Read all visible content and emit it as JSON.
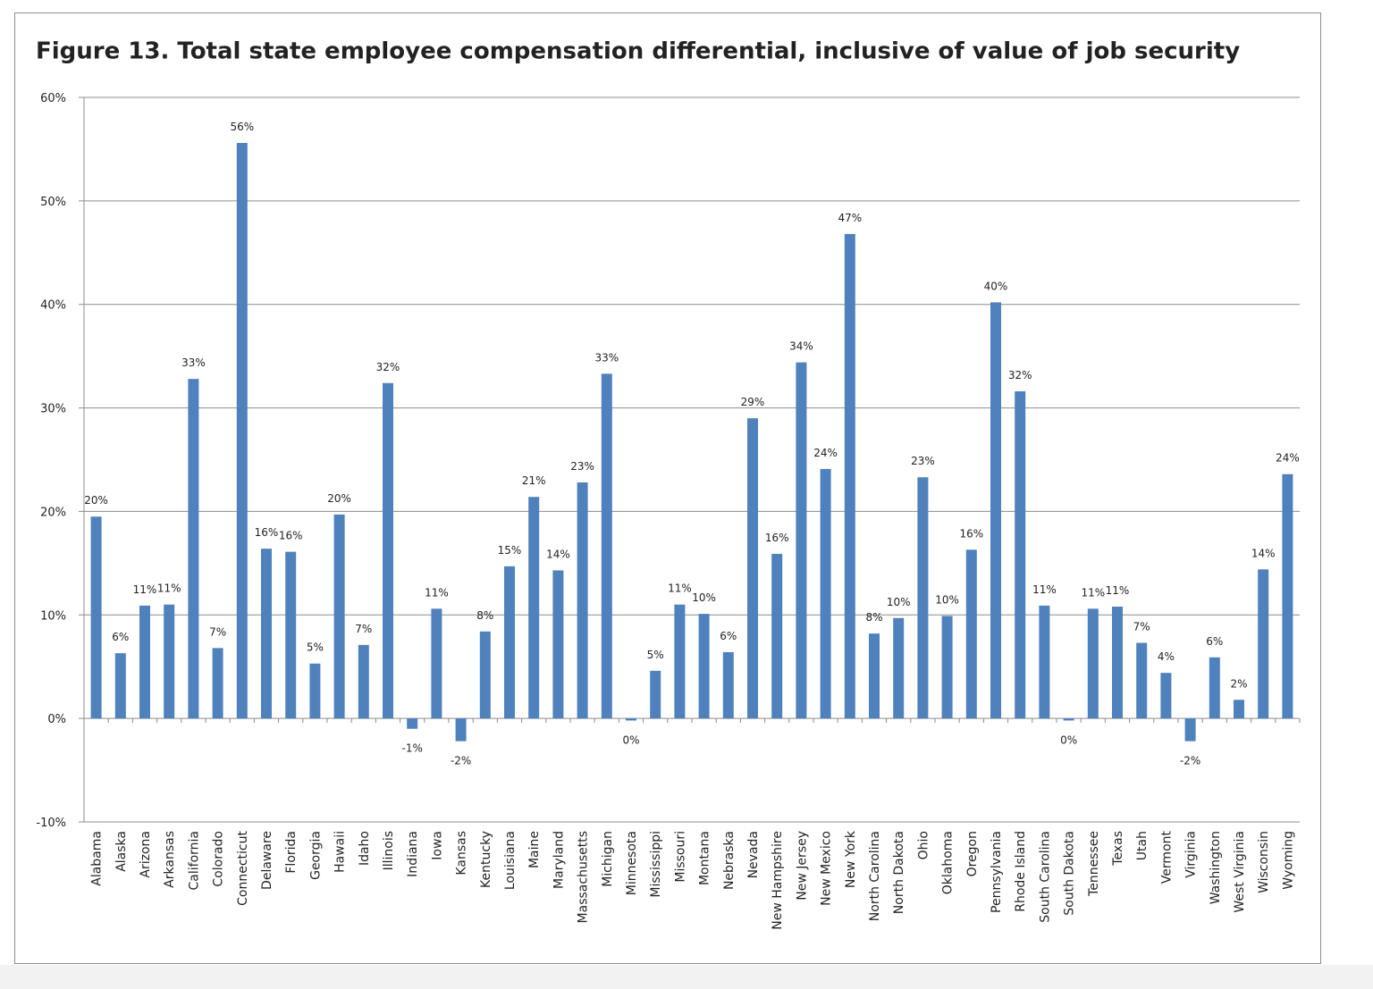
{
  "chart_data": {
    "type": "bar",
    "title": "Figure 13. Total state employee compensation  differential, inclusive of value of job security",
    "categories": [
      "Alabama",
      "Alaska",
      "Arizona",
      "Arkansas",
      "California",
      "Colorado",
      "Connecticut",
      "Delaware",
      "Florida",
      "Georgia",
      "Hawaii",
      "Idaho",
      "Illinois",
      "Indiana",
      "Iowa",
      "Kansas",
      "Kentucky",
      "Louisiana",
      "Maine",
      "Maryland",
      "Massachusetts",
      "Michigan",
      "Minnesota",
      "Mississippi",
      "Missouri",
      "Montana",
      "Nebraska",
      "Nevada",
      "New Hampshire",
      "New Jersey",
      "New Mexico",
      "New York",
      "North Carolina",
      "North Dakota",
      "Ohio",
      "Oklahoma",
      "Oregon",
      "Pennsylvania",
      "Rhode Island",
      "South Carolina",
      "South Dakota",
      "Tennessee",
      "Texas",
      "Utah",
      "Vermont",
      "Virginia",
      "Washington",
      "West Virginia",
      "Wisconsin",
      "Wyoming"
    ],
    "values": [
      19.5,
      6.3,
      10.9,
      11.0,
      32.8,
      6.8,
      55.6,
      16.4,
      16.1,
      5.3,
      19.7,
      7.1,
      32.4,
      -1.0,
      10.6,
      -2.2,
      8.4,
      14.7,
      21.4,
      14.3,
      22.8,
      33.3,
      -0.2,
      4.6,
      11.0,
      10.1,
      6.4,
      29.0,
      15.9,
      34.4,
      24.1,
      46.8,
      8.2,
      9.7,
      23.3,
      9.9,
      16.3,
      40.2,
      31.6,
      10.9,
      -0.2,
      10.6,
      10.8,
      7.3,
      4.4,
      -2.2,
      5.9,
      1.8,
      14.4,
      23.6
    ],
    "value_labels": [
      "20%",
      "6%",
      "11%",
      "11%",
      "33%",
      "7%",
      "56%",
      "16%",
      "16%",
      "5%",
      "20%",
      "7%",
      "32%",
      "-1%",
      "11%",
      "-2%",
      "8%",
      "15%",
      "21%",
      "14%",
      "23%",
      "33%",
      "0%",
      "5%",
      "11%",
      "10%",
      "6%",
      "29%",
      "16%",
      "34%",
      "24%",
      "47%",
      "8%",
      "10%",
      "23%",
      "10%",
      "16%",
      "40%",
      "32%",
      "11%",
      "0%",
      "11%",
      "11%",
      "7%",
      "4%",
      "-2%",
      "6%",
      "2%",
      "14%",
      "24%"
    ],
    "color": "#4f81bd",
    "ylim": [
      -10,
      60
    ],
    "yticks": [
      {
        "value": -10,
        "label": "-10%"
      },
      {
        "value": 0,
        "label": "0%"
      },
      {
        "value": 10,
        "label": "10%"
      },
      {
        "value": 20,
        "label": "20%"
      },
      {
        "value": 30,
        "label": "30%"
      },
      {
        "value": 40,
        "label": "40%"
      },
      {
        "value": 50,
        "label": "50%"
      },
      {
        "value": 60,
        "label": "60%"
      }
    ],
    "grid": true
  }
}
